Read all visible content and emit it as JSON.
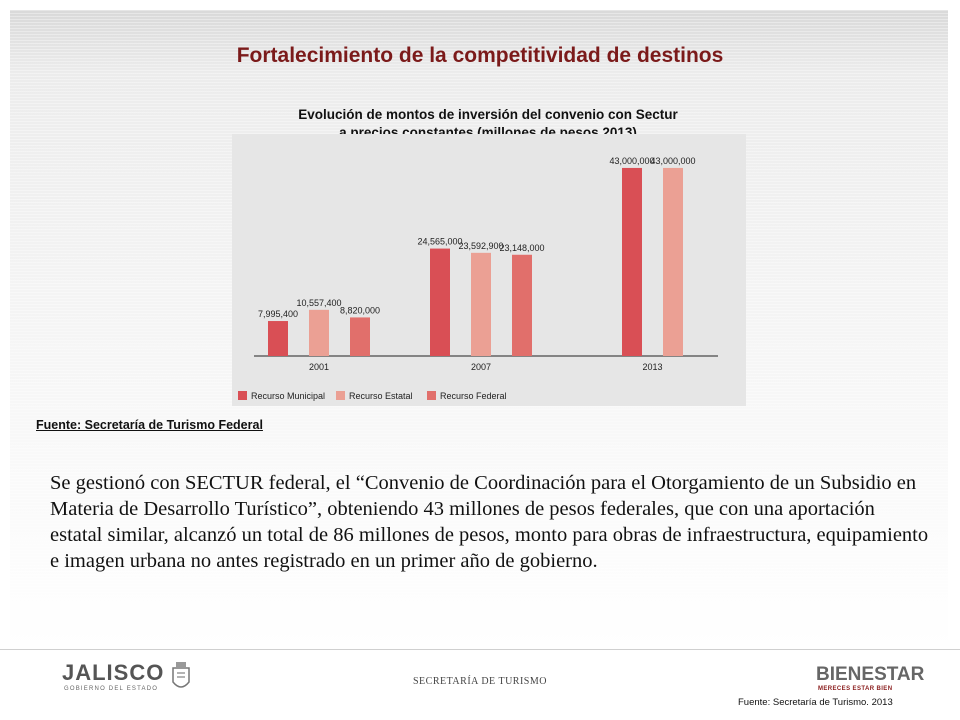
{
  "slide": {
    "title": "Fortalecimiento de la competitividad de destinos",
    "source": "Fuente: Secretaría de Turismo Federal",
    "body": "Se gestionó con SECTUR federal, el “Convenio de Coordinación para el Otorgamiento de un Subsidio en Materia de Desarrollo Turístico”, obteniendo 43 millones de pesos federales, que con una aportación estatal similar, alcanzó un total de 86 millones de pesos, monto para obras de infraestructura, equipamiento e imagen urbana no antes registrado en un primer año de gobierno."
  },
  "footer": {
    "logo_left": "JALISCO",
    "logo_left_sub": "GOBIERNO DEL ESTADO",
    "center": "SECRETARÍA DE TURISMO",
    "logo_right": "BIENESTAR",
    "logo_right_sub": "MERECES ESTAR BIEN",
    "source_right": "Fuente: Secretaría de Turismo. 2013"
  },
  "chart_data": {
    "type": "bar",
    "title_line1": "Evolución de montos de inversión del convenio con Sectur",
    "title_line2": "a precios constantes (millones de pesos 2013)",
    "categories": [
      "2001",
      "2007",
      "2013"
    ],
    "ylim": [
      0,
      45000000
    ],
    "legend_position": "bottom-left",
    "grid": false,
    "series": [
      {
        "name": "Recurso Municipal",
        "color": "#d94f55",
        "values": [
          7995400,
          24565000,
          43000000
        ],
        "labels": [
          "7,995,400",
          "24,565,000",
          "43,000,000"
        ]
      },
      {
        "name": "Recurso Estatal",
        "color": "#eba094",
        "values": [
          10557400,
          23592900,
          43000000
        ],
        "labels": [
          "10,557,400",
          "23,592,900",
          "43,000,000"
        ]
      },
      {
        "name": "Recurso Federal",
        "color": "#e16f6b",
        "values": [
          8820000,
          23148000,
          null
        ],
        "labels": [
          "8,820,000",
          "23,148,000",
          ""
        ]
      }
    ]
  }
}
